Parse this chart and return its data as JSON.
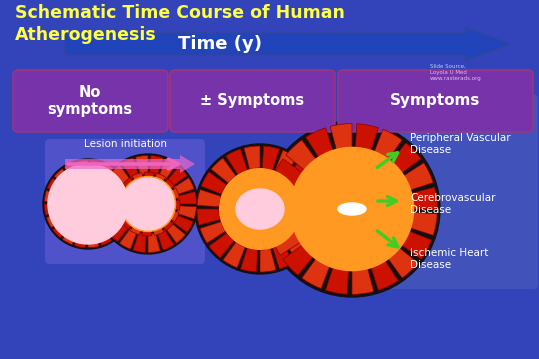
{
  "title_line1": "Schematic Time Course of Human",
  "title_line2": "Atherogenesis",
  "bg_color": "#3344bb",
  "title_color": "#ffff44",
  "box_symptom_face": "#6633aa",
  "box_symptom_edge": "#aa4488",
  "box_lesion_face": "#5544bb",
  "box_right_face": "#4455bb",
  "arrow_lesion_color": "#ee66bb",
  "green_arrow_color": "#44cc22",
  "time_arrow_color": "#2244aa",
  "white_text": "#ffffff",
  "label_no_symptoms": "No\nsymptoms",
  "label_pm_symptoms": "± Symptoms",
  "label_symptoms": "Symptoms",
  "label_lesion": "Lesion initiation",
  "label_time": "Time (y)",
  "label_ischemic": "Ischemic Heart\nDisease",
  "label_cerebro": "Cerebrovascular\nDisease",
  "label_peripheral": "Peripheral Vascular\nDisease",
  "brick_dark": "#cc1100",
  "brick_light": "#dd3311",
  "brick_mortar": "#880000",
  "orange_fill": "#ff9922",
  "lumen_pink": "#ffccdd",
  "lumen_white": "#ffffff",
  "outer_dark": "#111111"
}
